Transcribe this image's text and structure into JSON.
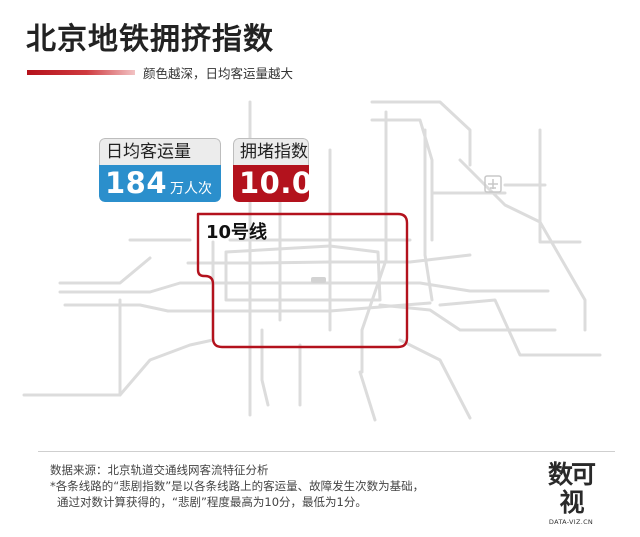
{
  "header": {
    "title": "北京地铁拥挤指数",
    "legend_text": "颜色越深，日均客运量越大"
  },
  "cards": {
    "ridership": {
      "label": "日均客运量",
      "value": "184",
      "unit": "万人次",
      "color": "#2b8fcc"
    },
    "congestion": {
      "label": "拥堵指数",
      "value": "10.0",
      "color": "#b3121d"
    }
  },
  "map": {
    "line_label": "10号线",
    "highlight_color": "#b3121d",
    "base_line_color": "#dcdcdc"
  },
  "footer": {
    "source": "数据来源：北京轨道交通线网客流特征分析",
    "note_line1": "*各条线路的“悲剧指数”是以各条线路上的客运量、故障发生次数为基础，",
    "note_line2": "通过对数计算获得的，“悲剧”程度最高为10分，最低为1分。",
    "logo_mark": "数可视",
    "logo_text": "DATA-VIZ.CN"
  }
}
